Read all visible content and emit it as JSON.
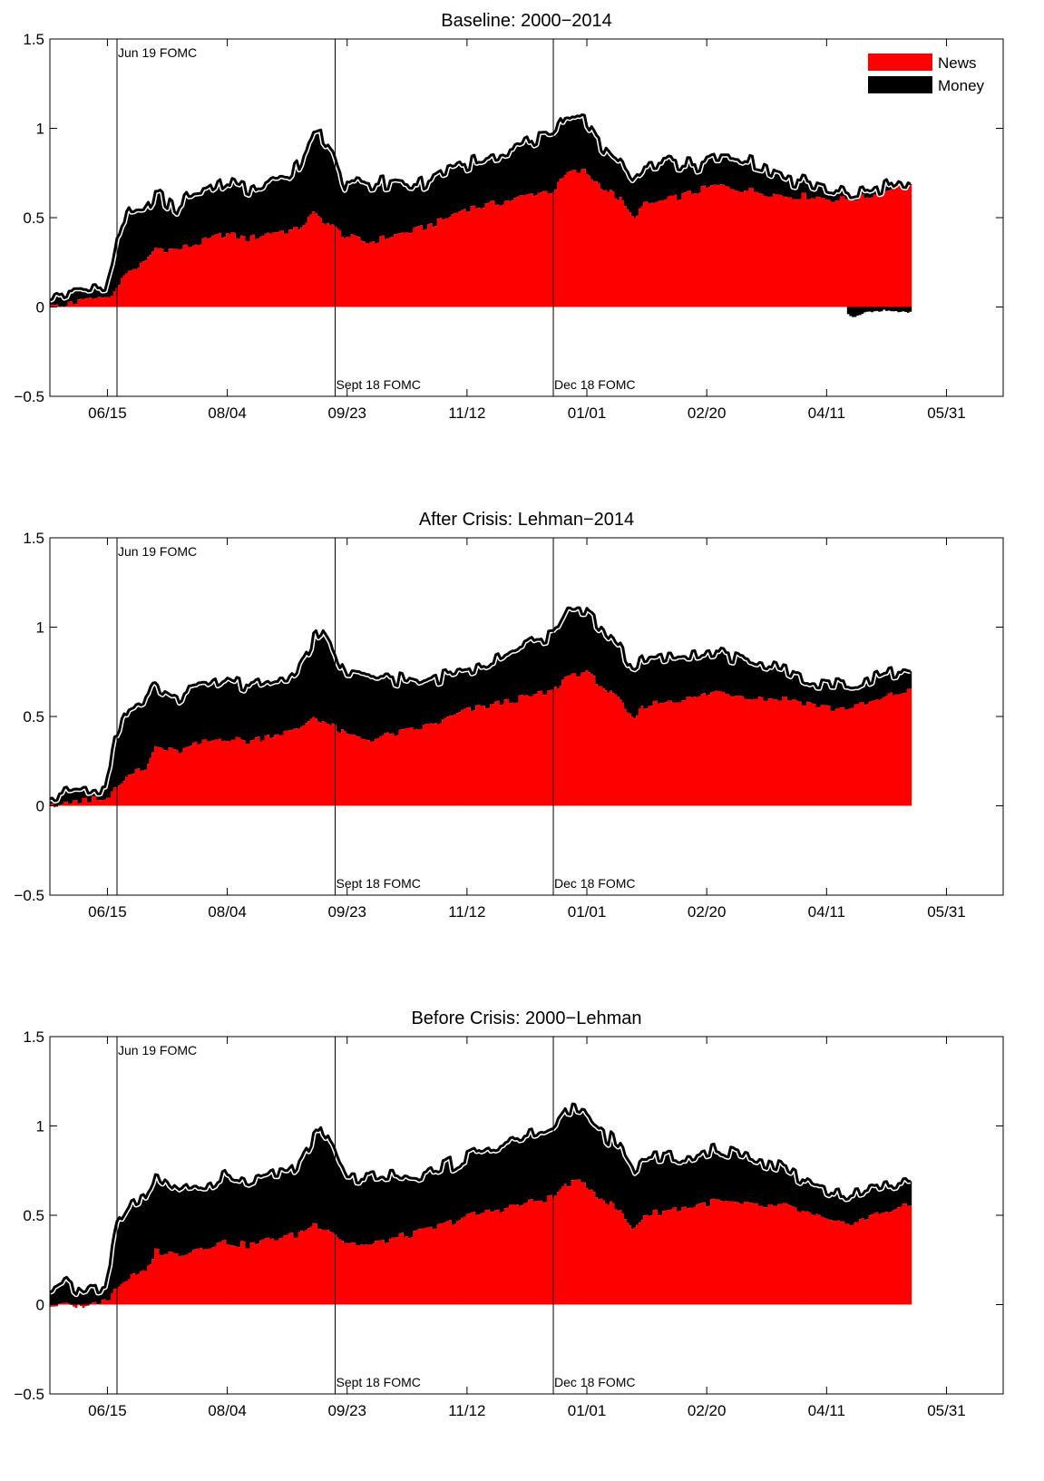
{
  "colors": {
    "news": "#ff0000",
    "money": "#000000",
    "outline": "#ffffff",
    "total": "#000000"
  },
  "chart_data": [
    {
      "type": "area",
      "title": "Baseline: 2000−2014",
      "xlabel": "",
      "ylabel": "",
      "xticks": [
        "06/15",
        "08/04",
        "09/23",
        "11/12",
        "01/01",
        "02/20",
        "04/11",
        "05/31"
      ],
      "ylim": [
        -0.5,
        1.5
      ],
      "yticks": [
        "−0.5",
        "0",
        "0.5",
        "1",
        "1.5"
      ],
      "events": [
        {
          "label": "Jun 19 FOMC",
          "day": 0
        },
        {
          "label": "Sept 18 FOMC",
          "day": 91
        },
        {
          "label": "Dec 18 FOMC",
          "day": 182
        }
      ],
      "legend": [
        "News",
        "Money"
      ],
      "legend_position": "top-right",
      "news_keypoints": [
        [
          -28,
          0.0
        ],
        [
          -20,
          0.02
        ],
        [
          -10,
          0.04
        ],
        [
          -3,
          0.05
        ],
        [
          0,
          0.12
        ],
        [
          5,
          0.2
        ],
        [
          12,
          0.25
        ],
        [
          16,
          0.33
        ],
        [
          25,
          0.32
        ],
        [
          35,
          0.36
        ],
        [
          45,
          0.41
        ],
        [
          55,
          0.38
        ],
        [
          65,
          0.42
        ],
        [
          75,
          0.43
        ],
        [
          82,
          0.52
        ],
        [
          88,
          0.47
        ],
        [
          95,
          0.4
        ],
        [
          105,
          0.36
        ],
        [
          115,
          0.4
        ],
        [
          125,
          0.43
        ],
        [
          135,
          0.48
        ],
        [
          145,
          0.55
        ],
        [
          155,
          0.57
        ],
        [
          165,
          0.6
        ],
        [
          175,
          0.64
        ],
        [
          182,
          0.65
        ],
        [
          188,
          0.75
        ],
        [
          195,
          0.76
        ],
        [
          200,
          0.7
        ],
        [
          210,
          0.6
        ],
        [
          215,
          0.5
        ],
        [
          220,
          0.57
        ],
        [
          230,
          0.6
        ],
        [
          240,
          0.64
        ],
        [
          250,
          0.68
        ],
        [
          260,
          0.66
        ],
        [
          270,
          0.64
        ],
        [
          280,
          0.62
        ],
        [
          290,
          0.62
        ],
        [
          300,
          0.6
        ],
        [
          310,
          0.61
        ],
        [
          320,
          0.64
        ],
        [
          325,
          0.68
        ],
        [
          331,
          0.68
        ]
      ],
      "money_keypoints": [
        [
          -28,
          0.05
        ],
        [
          -20,
          0.07
        ],
        [
          -12,
          0.06
        ],
        [
          -5,
          0.06
        ],
        [
          0,
          0.3
        ],
        [
          5,
          0.33
        ],
        [
          12,
          0.29
        ],
        [
          18,
          0.3
        ],
        [
          25,
          0.22
        ],
        [
          30,
          0.28
        ],
        [
          38,
          0.26
        ],
        [
          45,
          0.3
        ],
        [
          55,
          0.28
        ],
        [
          65,
          0.31
        ],
        [
          72,
          0.3
        ],
        [
          80,
          0.42
        ],
        [
          85,
          0.48
        ],
        [
          90,
          0.43
        ],
        [
          95,
          0.3
        ],
        [
          105,
          0.32
        ],
        [
          115,
          0.3
        ],
        [
          125,
          0.25
        ],
        [
          135,
          0.27
        ],
        [
          145,
          0.25
        ],
        [
          155,
          0.28
        ],
        [
          165,
          0.28
        ],
        [
          175,
          0.31
        ],
        [
          183,
          0.3
        ],
        [
          188,
          0.33
        ],
        [
          195,
          0.3
        ],
        [
          200,
          0.25
        ],
        [
          210,
          0.2
        ],
        [
          220,
          0.22
        ],
        [
          230,
          0.2
        ],
        [
          240,
          0.15
        ],
        [
          250,
          0.15
        ],
        [
          260,
          0.17
        ],
        [
          270,
          0.15
        ],
        [
          280,
          0.1
        ],
        [
          290,
          0.07
        ],
        [
          300,
          0.05
        ],
        [
          305,
          0.02
        ],
        [
          315,
          0.03
        ],
        [
          325,
          0.04
        ],
        [
          331,
          0.0
        ]
      ],
      "money_negative": [
        [
          305,
          -0.04
        ],
        [
          308,
          -0.06
        ],
        [
          312,
          -0.03
        ],
        [
          320,
          -0.02
        ],
        [
          331,
          -0.03
        ]
      ]
    },
    {
      "type": "area",
      "title": "After Crisis: Lehman−2014",
      "xlabel": "",
      "ylabel": "",
      "xticks": [
        "06/15",
        "08/04",
        "09/23",
        "11/12",
        "01/01",
        "02/20",
        "04/11",
        "05/31"
      ],
      "ylim": [
        -0.5,
        1.5
      ],
      "yticks": [
        "−0.5",
        "0",
        "0.5",
        "1",
        "1.5"
      ],
      "events": [
        {
          "label": "Jun 19 FOMC",
          "day": 0
        },
        {
          "label": "Sept 18 FOMC",
          "day": 91
        },
        {
          "label": "Dec 18 FOMC",
          "day": 182
        }
      ],
      "legend": [],
      "legend_position": "",
      "news_keypoints": [
        [
          -28,
          0.0
        ],
        [
          -20,
          0.02
        ],
        [
          -10,
          0.04
        ],
        [
          -3,
          0.05
        ],
        [
          0,
          0.12
        ],
        [
          5,
          0.18
        ],
        [
          12,
          0.2
        ],
        [
          16,
          0.33
        ],
        [
          25,
          0.3
        ],
        [
          35,
          0.35
        ],
        [
          45,
          0.38
        ],
        [
          55,
          0.36
        ],
        [
          65,
          0.4
        ],
        [
          75,
          0.42
        ],
        [
          82,
          0.5
        ],
        [
          88,
          0.46
        ],
        [
          95,
          0.4
        ],
        [
          105,
          0.37
        ],
        [
          115,
          0.4
        ],
        [
          125,
          0.43
        ],
        [
          135,
          0.47
        ],
        [
          145,
          0.53
        ],
        [
          155,
          0.56
        ],
        [
          165,
          0.59
        ],
        [
          175,
          0.62
        ],
        [
          182,
          0.64
        ],
        [
          188,
          0.73
        ],
        [
          195,
          0.75
        ],
        [
          200,
          0.7
        ],
        [
          210,
          0.58
        ],
        [
          215,
          0.48
        ],
        [
          220,
          0.56
        ],
        [
          230,
          0.59
        ],
        [
          240,
          0.6
        ],
        [
          250,
          0.64
        ],
        [
          260,
          0.62
        ],
        [
          270,
          0.6
        ],
        [
          280,
          0.6
        ],
        [
          290,
          0.57
        ],
        [
          300,
          0.54
        ],
        [
          310,
          0.56
        ],
        [
          320,
          0.6
        ],
        [
          325,
          0.63
        ],
        [
          331,
          0.64
        ]
      ],
      "money_keypoints": [
        [
          -28,
          0.06
        ],
        [
          -20,
          0.07
        ],
        [
          -12,
          0.06
        ],
        [
          -5,
          0.06
        ],
        [
          0,
          0.3
        ],
        [
          5,
          0.38
        ],
        [
          12,
          0.4
        ],
        [
          18,
          0.33
        ],
        [
          25,
          0.3
        ],
        [
          30,
          0.33
        ],
        [
          38,
          0.3
        ],
        [
          45,
          0.33
        ],
        [
          55,
          0.3
        ],
        [
          65,
          0.31
        ],
        [
          72,
          0.3
        ],
        [
          80,
          0.4
        ],
        [
          85,
          0.5
        ],
        [
          90,
          0.43
        ],
        [
          95,
          0.33
        ],
        [
          105,
          0.35
        ],
        [
          115,
          0.32
        ],
        [
          125,
          0.25
        ],
        [
          135,
          0.25
        ],
        [
          145,
          0.23
        ],
        [
          155,
          0.25
        ],
        [
          165,
          0.28
        ],
        [
          175,
          0.31
        ],
        [
          183,
          0.31
        ],
        [
          188,
          0.37
        ],
        [
          195,
          0.35
        ],
        [
          200,
          0.33
        ],
        [
          210,
          0.3
        ],
        [
          220,
          0.25
        ],
        [
          230,
          0.25
        ],
        [
          240,
          0.24
        ],
        [
          250,
          0.22
        ],
        [
          260,
          0.21
        ],
        [
          270,
          0.2
        ],
        [
          280,
          0.16
        ],
        [
          290,
          0.12
        ],
        [
          300,
          0.14
        ],
        [
          310,
          0.12
        ],
        [
          320,
          0.14
        ],
        [
          331,
          0.1
        ]
      ],
      "money_negative": []
    },
    {
      "type": "area",
      "title": "Before Crisis: 2000−Lehman",
      "xlabel": "",
      "ylabel": "",
      "xticks": [
        "06/15",
        "08/04",
        "09/23",
        "11/12",
        "01/01",
        "02/20",
        "04/11",
        "05/31"
      ],
      "ylim": [
        -0.5,
        1.0
      ],
      "yticks": [
        "−0.5",
        "0",
        "0.5",
        "1",
        "1.5"
      ],
      "events": [
        {
          "label": "Jun 19 FOMC",
          "day": 0
        },
        {
          "label": "Sept 18 FOMC",
          "day": 91
        },
        {
          "label": "Dec 18 FOMC",
          "day": 182
        }
      ],
      "legend": [],
      "legend_position": "",
      "news_keypoints": [
        [
          -28,
          0.0
        ],
        [
          -20,
          0.01
        ],
        [
          -14,
          -0.03
        ],
        [
          -10,
          0.01
        ],
        [
          -3,
          0.03
        ],
        [
          0,
          0.1
        ],
        [
          5,
          0.15
        ],
        [
          12,
          0.18
        ],
        [
          16,
          0.3
        ],
        [
          25,
          0.28
        ],
        [
          35,
          0.32
        ],
        [
          45,
          0.35
        ],
        [
          55,
          0.33
        ],
        [
          65,
          0.37
        ],
        [
          75,
          0.39
        ],
        [
          82,
          0.45
        ],
        [
          88,
          0.43
        ],
        [
          95,
          0.35
        ],
        [
          105,
          0.33
        ],
        [
          115,
          0.37
        ],
        [
          125,
          0.4
        ],
        [
          135,
          0.44
        ],
        [
          145,
          0.49
        ],
        [
          155,
          0.52
        ],
        [
          165,
          0.55
        ],
        [
          175,
          0.58
        ],
        [
          182,
          0.6
        ],
        [
          188,
          0.68
        ],
        [
          195,
          0.68
        ],
        [
          200,
          0.62
        ],
        [
          210,
          0.52
        ],
        [
          215,
          0.42
        ],
        [
          220,
          0.5
        ],
        [
          230,
          0.53
        ],
        [
          240,
          0.55
        ],
        [
          250,
          0.58
        ],
        [
          260,
          0.56
        ],
        [
          270,
          0.55
        ],
        [
          280,
          0.55
        ],
        [
          290,
          0.5
        ],
        [
          300,
          0.45
        ],
        [
          310,
          0.47
        ],
        [
          320,
          0.52
        ],
        [
          325,
          0.54
        ],
        [
          331,
          0.55
        ]
      ],
      "money_keypoints": [
        [
          -28,
          0.08
        ],
        [
          -20,
          0.12
        ],
        [
          -12,
          0.08
        ],
        [
          -5,
          0.08
        ],
        [
          0,
          0.35
        ],
        [
          5,
          0.41
        ],
        [
          12,
          0.42
        ],
        [
          18,
          0.42
        ],
        [
          25,
          0.35
        ],
        [
          30,
          0.37
        ],
        [
          38,
          0.35
        ],
        [
          45,
          0.38
        ],
        [
          55,
          0.35
        ],
        [
          65,
          0.37
        ],
        [
          72,
          0.35
        ],
        [
          80,
          0.45
        ],
        [
          85,
          0.55
        ],
        [
          90,
          0.47
        ],
        [
          95,
          0.37
        ],
        [
          105,
          0.38
        ],
        [
          115,
          0.35
        ],
        [
          125,
          0.3
        ],
        [
          135,
          0.32
        ],
        [
          145,
          0.33
        ],
        [
          155,
          0.35
        ],
        [
          165,
          0.37
        ],
        [
          175,
          0.37
        ],
        [
          183,
          0.39
        ],
        [
          188,
          0.42
        ],
        [
          195,
          0.4
        ],
        [
          200,
          0.38
        ],
        [
          210,
          0.35
        ],
        [
          220,
          0.32
        ],
        [
          230,
          0.3
        ],
        [
          240,
          0.27
        ],
        [
          250,
          0.28
        ],
        [
          260,
          0.27
        ],
        [
          270,
          0.25
        ],
        [
          280,
          0.2
        ],
        [
          290,
          0.17
        ],
        [
          300,
          0.16
        ],
        [
          310,
          0.16
        ],
        [
          320,
          0.15
        ],
        [
          331,
          0.14
        ]
      ],
      "money_negative": []
    }
  ]
}
